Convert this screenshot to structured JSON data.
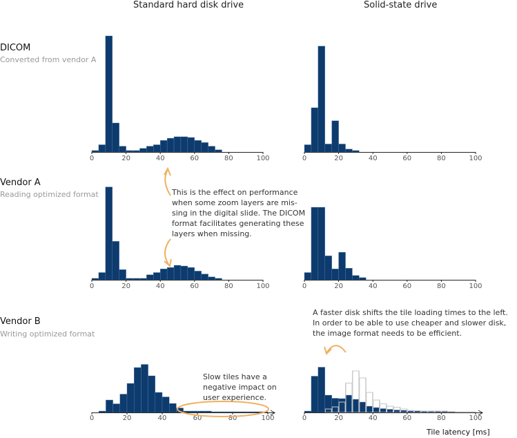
{
  "columns": [
    "Standard hard disk drive",
    "Solid-state drive"
  ],
  "rows": [
    {
      "title": "DICOM",
      "subtitle": "Converted from vendor A"
    },
    {
      "title": "Vendor A",
      "subtitle": "Reading optimized format"
    },
    {
      "title": "Vendor B",
      "subtitle": "Writing optimized format"
    }
  ],
  "annotations": {
    "middle": "This is the effect on performance when some zoom layers are mis- sing in the digital slide. The DICOM format facilitates generating these layers when missing.",
    "slow": "Slow tiles have a negative impact on user experience.",
    "faster": "A faster disk shifts the tile loading times to the left. In order to be able to use cheaper and slower disk, the image format needs to be efficient."
  },
  "xlabel": "Tile latency [ms]",
  "colors": {
    "bar": "#0d3b6e",
    "outline": "#c8c8c8",
    "accent": "#f0b060"
  },
  "chart_data": [
    {
      "type": "bar",
      "panel": "dicom-hdd",
      "bin_width": 4,
      "x_start": 0,
      "xlim": [
        0,
        100
      ],
      "xticks": [
        0,
        20,
        40,
        60,
        80,
        100
      ],
      "values": [
        0.2,
        1,
        16,
        4,
        0.8,
        0.2,
        0.2,
        0.5,
        0.8,
        1,
        1.6,
        1.9,
        2.1,
        2.1,
        2,
        1.6,
        1.3,
        0.8,
        0.3,
        0,
        0,
        0,
        0,
        0,
        0
      ]
    },
    {
      "type": "bar",
      "panel": "dicom-ssd",
      "bin_width": 4,
      "x_start": 0,
      "xlim": [
        0,
        100
      ],
      "xticks": [
        0,
        20,
        40,
        60,
        80,
        100
      ],
      "values": [
        1,
        6.1,
        14.6,
        1.1,
        4.3,
        1.1,
        0.4,
        0.2,
        0,
        0,
        0,
        0,
        0,
        0,
        0,
        0,
        0,
        0,
        0,
        0,
        0,
        0,
        0,
        0,
        0
      ]
    },
    {
      "type": "bar",
      "panel": "vendora-hdd",
      "bin_width": 4,
      "x_start": 0,
      "xlim": [
        0,
        100
      ],
      "xticks": [
        0,
        20,
        40,
        60,
        80,
        100
      ],
      "values": [
        0.2,
        1,
        12.8,
        5.3,
        1.4,
        0.2,
        0.2,
        0.2,
        0.7,
        1,
        1.5,
        1.7,
        2,
        1.9,
        1.7,
        1.2,
        0.8,
        0.4,
        0.2,
        0,
        0,
        0,
        0,
        0,
        0
      ]
    },
    {
      "type": "bar",
      "panel": "vendora-ssd",
      "bin_width": 4,
      "x_start": 0,
      "xlim": [
        0,
        100
      ],
      "xticks": [
        0,
        20,
        40,
        60,
        80,
        100
      ],
      "values": [
        1,
        10,
        10,
        3.3,
        1.5,
        3.8,
        1.6,
        0.6,
        0.3,
        0,
        0,
        0,
        0,
        0,
        0,
        0,
        0,
        0,
        0,
        0,
        0,
        0,
        0,
        0,
        0
      ]
    },
    {
      "type": "bar",
      "panel": "vendorb-hdd",
      "bin_width": 4,
      "x_start": 0,
      "xlim": [
        0,
        100
      ],
      "xticks": [
        0,
        20,
        40,
        60,
        80,
        100
      ],
      "values": [
        0,
        0.4,
        3.6,
        2.5,
        5.3,
        8.4,
        13,
        13.9,
        10.6,
        5.8,
        4.5,
        2.6,
        1.3,
        0.4,
        0.4,
        0.4,
        0.4,
        0.2,
        0.2,
        0.2,
        0.2,
        0.2,
        0.2,
        0.2,
        0.2
      ]
    },
    {
      "type": "bar",
      "panel": "vendorb-ssd",
      "bin_width": 4,
      "x_start": 0,
      "xlim": [
        0,
        100
      ],
      "xticks": [
        0,
        20,
        40,
        60,
        80,
        100
      ],
      "values": [
        0.4,
        10.5,
        13.1,
        5,
        4.1,
        4,
        5,
        3.8,
        3,
        1.8,
        1.4,
        1.1,
        0.9,
        0.7,
        0.6,
        0.6,
        0.5,
        0.4,
        0.3,
        0.3,
        0.3,
        0.2,
        0.2,
        0.2,
        0.1
      ],
      "comparison_outline": [
        0,
        0,
        0,
        1,
        1.6,
        3,
        8.5,
        12,
        10,
        5.8,
        3.6,
        2.5,
        1.8,
        1.5,
        1,
        0.5,
        0.5,
        0.4,
        0.4,
        0.4,
        0.4,
        0.3,
        0.2,
        0.2,
        0.2
      ]
    }
  ]
}
